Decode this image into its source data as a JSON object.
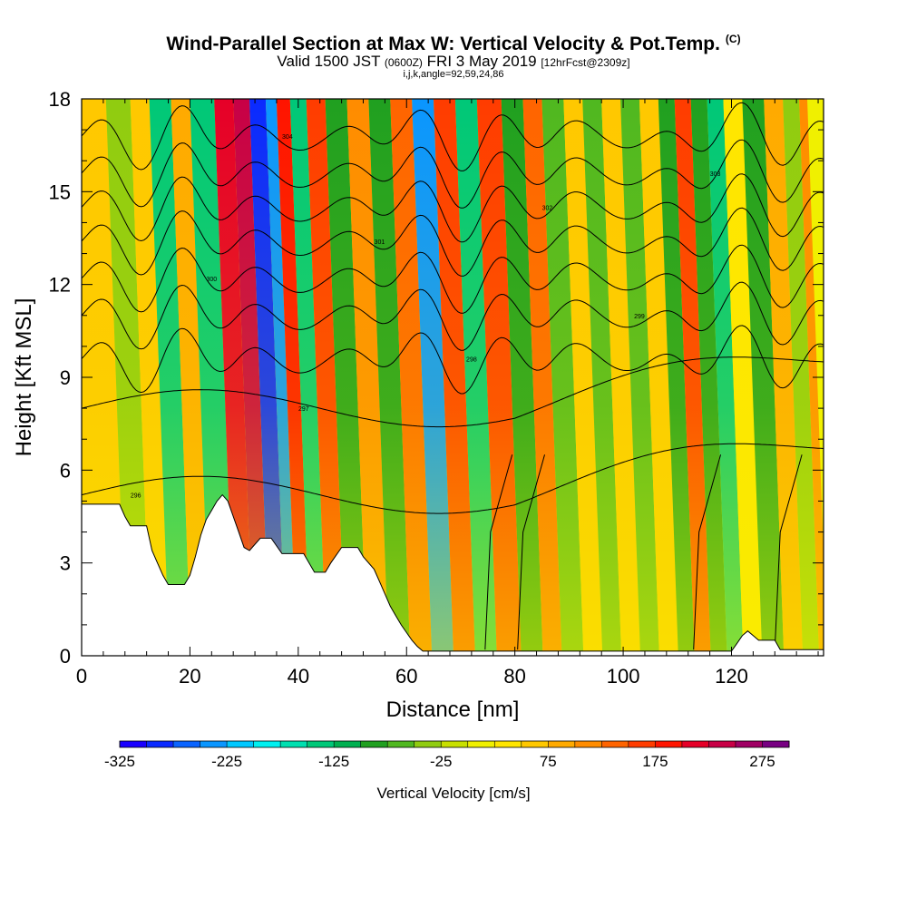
{
  "title": {
    "main": "Wind-Parallel Section at Max W: Vertical Velocity & Pot.Temp.",
    "copyright": "(C)",
    "valid_prefix": "Valid 1500 JST",
    "valid_utc": "(0600Z)",
    "valid_date": "FRI 3 May 2019",
    "fcst": "[12hrFcst@2309z]",
    "params": "i,j,k,angle=92,59,24,86"
  },
  "chart_data": {
    "type": "heatmap",
    "xlabel": "Distance [nm]",
    "ylabel": "Height [Kft MSL]",
    "xlim": [
      0,
      137
    ],
    "ylim": [
      0,
      18
    ],
    "x_ticks": [
      "0",
      "20",
      "40",
      "60",
      "80",
      "100",
      "120"
    ],
    "y_ticks": [
      "0",
      "3",
      "6",
      "9",
      "12",
      "15",
      "18"
    ],
    "colorbar": {
      "label": "Vertical Velocity [cm/s]",
      "min": -325,
      "max": 300,
      "step": 25,
      "tick_labels": [
        "-325",
        "-225",
        "-125",
        "-25",
        "75",
        "175",
        "275"
      ],
      "colors": [
        "#1a00ff",
        "#0a2aff",
        "#0a64ff",
        "#0a96ff",
        "#00c8ff",
        "#00f0f0",
        "#00e0b0",
        "#00c878",
        "#00b050",
        "#20a020",
        "#50b820",
        "#90cc10",
        "#c8e000",
        "#f0f000",
        "#ffe600",
        "#ffc800",
        "#ffaa00",
        "#ff8c00",
        "#ff6400",
        "#ff3c00",
        "#ff1400",
        "#e60028",
        "#c80046",
        "#a00064",
        "#780082"
      ]
    },
    "velocity_bands": [
      {
        "x": 4,
        "w_cm_s": 60
      },
      {
        "x": 11,
        "w_cm_s": -40
      },
      {
        "x": 13,
        "w_cm_s": 50
      },
      {
        "x": 18,
        "w_cm_s": -130
      },
      {
        "x": 21,
        "w_cm_s": 80
      },
      {
        "x": 25,
        "w_cm_s": -130
      },
      {
        "x": 30,
        "w_cm_s": 200
      },
      {
        "x": 32,
        "w_cm_s": 225
      },
      {
        "x": 36,
        "w_cm_s": -300
      },
      {
        "x": 38,
        "w_cm_s": -230
      },
      {
        "x": 40,
        "w_cm_s": 175
      },
      {
        "x": 43,
        "w_cm_s": -150
      },
      {
        "x": 46,
        "w_cm_s": 150
      },
      {
        "x": 50,
        "w_cm_s": -100
      },
      {
        "x": 54,
        "w_cm_s": 120
      },
      {
        "x": 58,
        "w_cm_s": -90
      },
      {
        "x": 62,
        "w_cm_s": 130
      },
      {
        "x": 66,
        "w_cm_s": -250
      },
      {
        "x": 70,
        "w_cm_s": 150
      },
      {
        "x": 74,
        "w_cm_s": -130
      },
      {
        "x": 78,
        "w_cm_s": 160
      },
      {
        "x": 83,
        "w_cm_s": -90
      },
      {
        "x": 86,
        "w_cm_s": 130
      },
      {
        "x": 90,
        "w_cm_s": -60
      },
      {
        "x": 94,
        "w_cm_s": 60
      },
      {
        "x": 97,
        "w_cm_s": -60
      },
      {
        "x": 101,
        "w_cm_s": 50
      },
      {
        "x": 104,
        "w_cm_s": -70
      },
      {
        "x": 108,
        "w_cm_s": 60
      },
      {
        "x": 111,
        "w_cm_s": -80
      },
      {
        "x": 114,
        "w_cm_s": 150
      },
      {
        "x": 117,
        "w_cm_s": -90
      },
      {
        "x": 120,
        "w_cm_s": -150
      },
      {
        "x": 123,
        "w_cm_s": 30
      },
      {
        "x": 127,
        "w_cm_s": -80
      },
      {
        "x": 131,
        "w_cm_s": 90
      },
      {
        "x": 134,
        "w_cm_s": -40
      },
      {
        "x": 137,
        "w_cm_s": 100
      }
    ],
    "terrain": [
      [
        0,
        4.9
      ],
      [
        7,
        4.9
      ],
      [
        8,
        4.5
      ],
      [
        9,
        4.2
      ],
      [
        12,
        4.2
      ],
      [
        13,
        3.4
      ],
      [
        14,
        3.0
      ],
      [
        15,
        2.6
      ],
      [
        16,
        2.3
      ],
      [
        19,
        2.3
      ],
      [
        20,
        2.6
      ],
      [
        21,
        3.2
      ],
      [
        22,
        3.9
      ],
      [
        23,
        4.4
      ],
      [
        24,
        4.7
      ],
      [
        25,
        5.0
      ],
      [
        26,
        5.2
      ],
      [
        27,
        5.0
      ],
      [
        28,
        4.5
      ],
      [
        29,
        4.0
      ],
      [
        30,
        3.5
      ],
      [
        31,
        3.4
      ],
      [
        33,
        3.8
      ],
      [
        35,
        3.8
      ],
      [
        37,
        3.3
      ],
      [
        41,
        3.3
      ],
      [
        42,
        3.0
      ],
      [
        43,
        2.7
      ],
      [
        45,
        2.7
      ],
      [
        46,
        3.0
      ],
      [
        48,
        3.5
      ],
      [
        51,
        3.5
      ],
      [
        52,
        3.2
      ],
      [
        54,
        2.8
      ],
      [
        55,
        2.4
      ],
      [
        56,
        2.0
      ],
      [
        57,
        1.6
      ],
      [
        58,
        1.3
      ],
      [
        59,
        1.0
      ],
      [
        60,
        0.75
      ],
      [
        61,
        0.5
      ],
      [
        62,
        0.3
      ],
      [
        63,
        0.15
      ],
      [
        81,
        0.15
      ],
      [
        109,
        0.15
      ],
      [
        115,
        0.15
      ],
      [
        120,
        0.15
      ],
      [
        121,
        0.4
      ],
      [
        122,
        0.65
      ],
      [
        123,
        0.8
      ],
      [
        124,
        0.65
      ],
      [
        125,
        0.5
      ],
      [
        128,
        0.5
      ],
      [
        129,
        0.2
      ],
      [
        137,
        0.2
      ]
    ],
    "contour_labels": [
      "296",
      "297",
      "298",
      "299",
      "300",
      "301",
      "302",
      "303",
      "304"
    ]
  }
}
